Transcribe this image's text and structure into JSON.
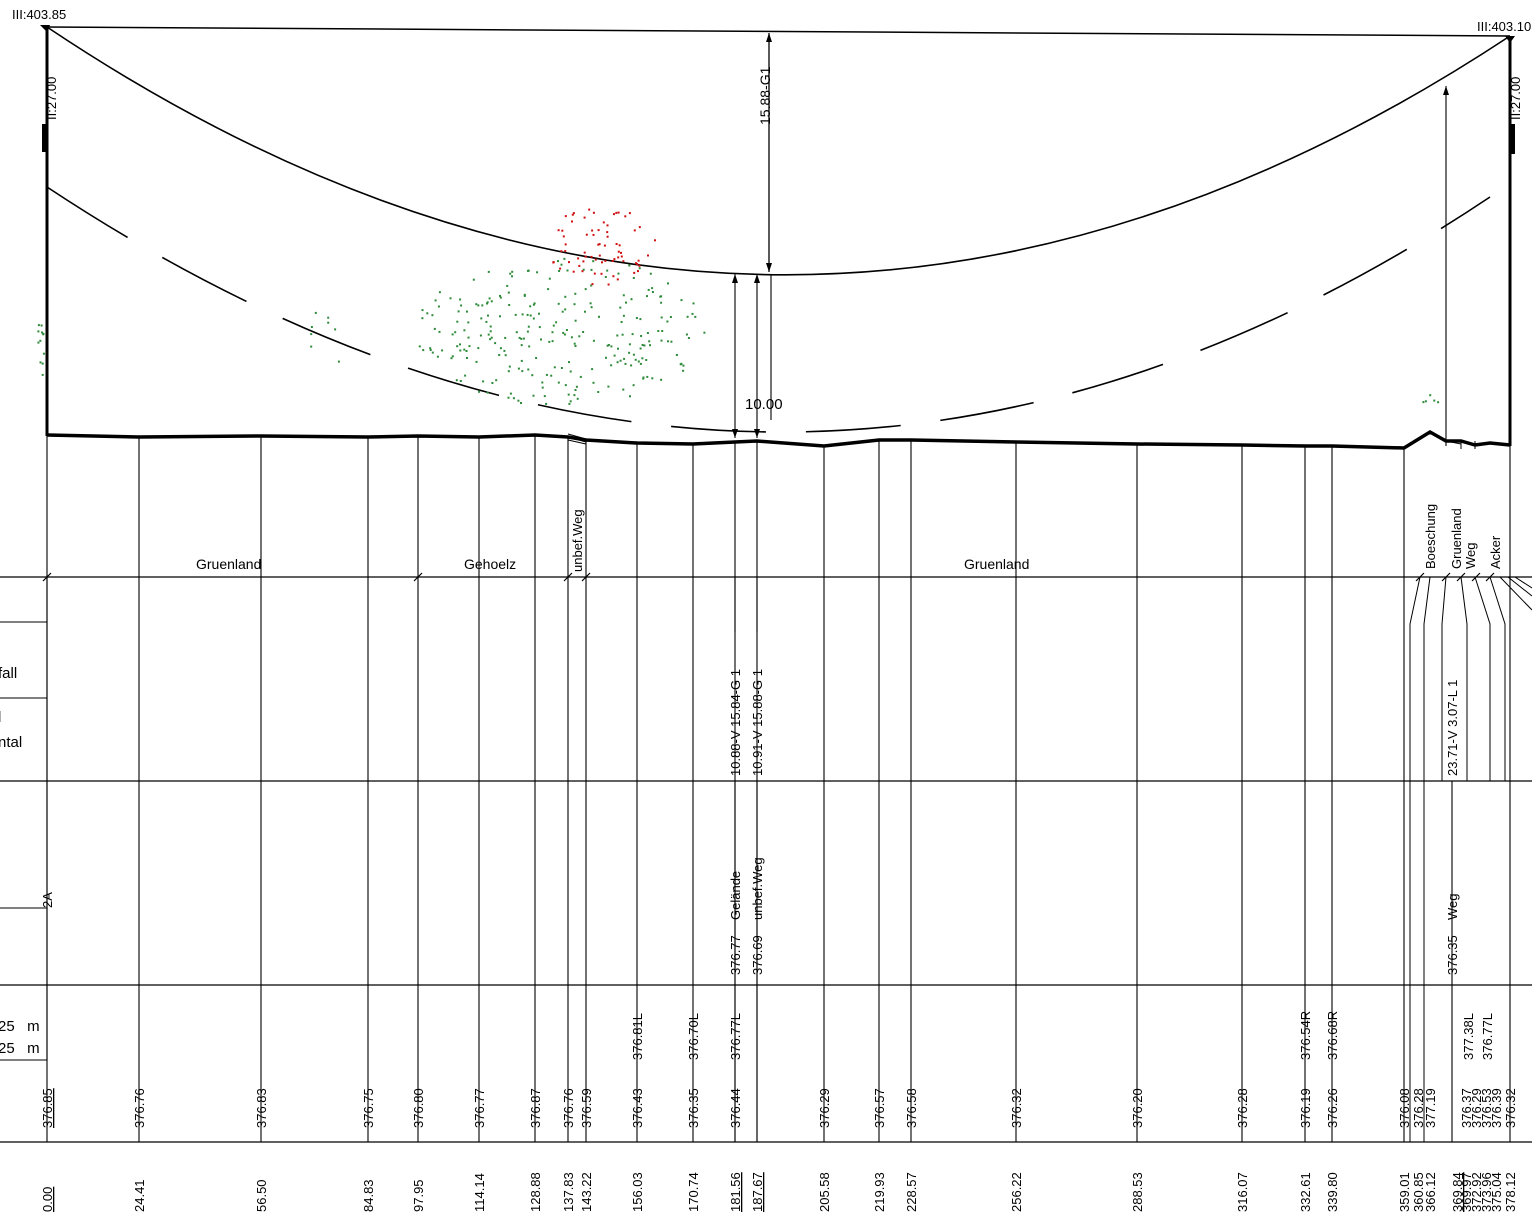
{
  "towers": {
    "left": {
      "top_label": "III:403.85",
      "side_label": "II:27.00"
    },
    "right": {
      "top_label": "III:403.10",
      "side_label": "II:27.00"
    }
  },
  "span": {
    "sag_label": "15.88-G1",
    "clearance_label": "10.00"
  },
  "landuse": [
    {
      "label": "Gruenland",
      "orientation": "h"
    },
    {
      "label": "Gehoelz",
      "orientation": "h"
    },
    {
      "label": "unbef.Weg",
      "orientation": "v"
    },
    {
      "label": "Gruenland",
      "orientation": "h"
    },
    {
      "label": "Boeschung",
      "orientation": "v"
    },
    {
      "label": "Gruenland",
      "orientation": "v"
    },
    {
      "label": "Weg",
      "orientation": "v"
    },
    {
      "label": "Acker",
      "orientation": "v"
    }
  ],
  "legend": {
    "fall": "fall",
    "l": "l",
    "ntal": "ntal",
    "code": "2A",
    "row1": "25   m",
    "row2": "25   m"
  },
  "crossings": [
    {
      "distance": "10.88-V 15.84-G 1",
      "kind": "Gelände",
      "height": "376.77"
    },
    {
      "distance": "10.91-V 15.88-G 1",
      "kind": "unbef.Weg",
      "height": "376.69"
    },
    {
      "distance": "23.71-V 3.07-L 1",
      "kind": "Weg",
      "height": "376.35"
    }
  ],
  "offsets": [
    "376.81L",
    "376.70L",
    "376.77L",
    "376.54R",
    "376.68R",
    "377.38L",
    "376.77L"
  ],
  "stations": [
    {
      "elevation": "376.85",
      "chainage": "0.00"
    },
    {
      "elevation": "376.76",
      "chainage": "24.41"
    },
    {
      "elevation": "376.83",
      "chainage": "56.50"
    },
    {
      "elevation": "376.75",
      "chainage": "84.83"
    },
    {
      "elevation": "376.80",
      "chainage": "97.95"
    },
    {
      "elevation": "376.77",
      "chainage": "114.14"
    },
    {
      "elevation": "376.87",
      "chainage": "128.88"
    },
    {
      "elevation": "376.76",
      "chainage": "137.83"
    },
    {
      "elevation": "376.59",
      "chainage": "143.22"
    },
    {
      "elevation": "376.43",
      "chainage": "156.03"
    },
    {
      "elevation": "376.35",
      "chainage": "170.74"
    },
    {
      "elevation": "376.44",
      "chainage": "181.56"
    },
    {
      "elevation": "",
      "chainage": "187.67"
    },
    {
      "elevation": "376.29",
      "chainage": "205.58"
    },
    {
      "elevation": "376.57",
      "chainage": "219.93"
    },
    {
      "elevation": "376.58",
      "chainage": "228.57"
    },
    {
      "elevation": "376.32",
      "chainage": "256.22"
    },
    {
      "elevation": "376.20",
      "chainage": "288.53"
    },
    {
      "elevation": "376.28",
      "chainage": "316.07"
    },
    {
      "elevation": "376.19",
      "chainage": "332.61"
    },
    {
      "elevation": "376.26",
      "chainage": "339.80"
    },
    {
      "elevation": "376.08",
      "chainage": "359.01"
    },
    {
      "elevation": "376.28",
      "chainage": "360.85"
    },
    {
      "elevation": "377.19",
      "chainage": "366.12"
    },
    {
      "elevation": "",
      "chainage": "369.84"
    },
    {
      "elevation": "376.37",
      "chainage": "369.97"
    },
    {
      "elevation": "376.29",
      "chainage": "372.92"
    },
    {
      "elevation": "376.53",
      "chainage": "373.96"
    },
    {
      "elevation": "376.39",
      "chainage": "375.04"
    },
    {
      "elevation": "376.32",
      "chainage": "378.12"
    }
  ]
}
